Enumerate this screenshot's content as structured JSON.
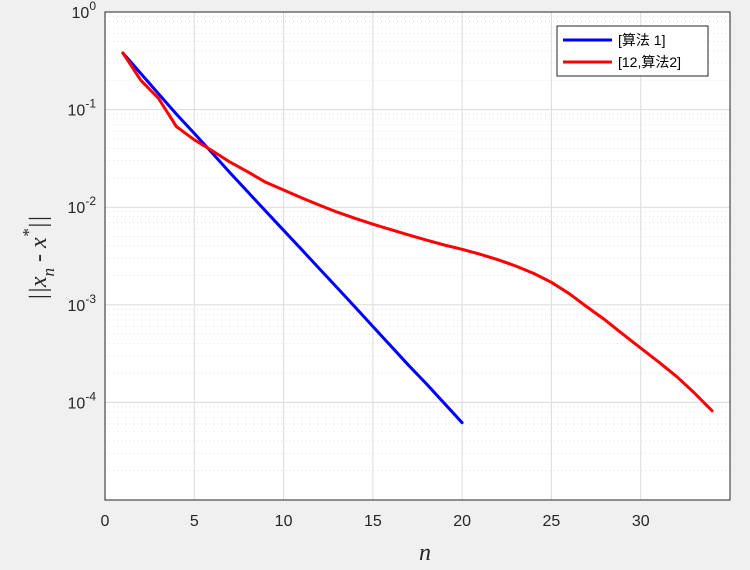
{
  "chart_data": {
    "type": "line",
    "xlabel": "n",
    "ylabel_parts": [
      "||x",
      "n",
      " - x",
      "*",
      "||"
    ],
    "xlim": [
      0,
      35
    ],
    "ylim": [
      1e-05,
      1
    ],
    "yscale": "log",
    "grid": true,
    "minor_grid": true,
    "legend_position": "top-right",
    "x_ticks": [
      0,
      5,
      10,
      15,
      20,
      25,
      30
    ],
    "y_ticks": [
      {
        "value": 1,
        "base": "10",
        "exp": "0"
      },
      {
        "value": 0.1,
        "base": "10",
        "exp": "-1"
      },
      {
        "value": 0.01,
        "base": "10",
        "exp": "-2"
      },
      {
        "value": 0.001,
        "base": "10",
        "exp": "-3"
      },
      {
        "value": 0.0001,
        "base": "10",
        "exp": "-4"
      }
    ],
    "series": [
      {
        "name": "[算法 1]",
        "color": "#0000ff",
        "points": [
          [
            1,
            0.38
          ],
          [
            2,
            0.235
          ],
          [
            3,
            0.145
          ],
          [
            4,
            0.09
          ],
          [
            5,
            0.057
          ],
          [
            6,
            0.036
          ],
          [
            7,
            0.0225
          ],
          [
            8,
            0.0143
          ],
          [
            9,
            0.0091
          ],
          [
            10,
            0.0058
          ],
          [
            11,
            0.0037
          ],
          [
            12,
            0.00235
          ],
          [
            13,
            0.0015
          ],
          [
            14,
            0.00095
          ],
          [
            15,
            0.0006
          ],
          [
            16,
            0.00038
          ],
          [
            17,
            0.00024
          ],
          [
            18,
            0.000155
          ],
          [
            19,
            9.8e-05
          ],
          [
            20,
            6.2e-05
          ]
        ]
      },
      {
        "name": "[12,算法2]",
        "color": "#ff0000",
        "points": [
          [
            1,
            0.38
          ],
          [
            2,
            0.2
          ],
          [
            3,
            0.13
          ],
          [
            4,
            0.067
          ],
          [
            5,
            0.049
          ],
          [
            6,
            0.038
          ],
          [
            7,
            0.029
          ],
          [
            8,
            0.023
          ],
          [
            9,
            0.018
          ],
          [
            10,
            0.015
          ],
          [
            11,
            0.0125
          ],
          [
            12,
            0.0105
          ],
          [
            13,
            0.0089
          ],
          [
            14,
            0.0077
          ],
          [
            15,
            0.0067
          ],
          [
            16,
            0.0059
          ],
          [
            17,
            0.0052
          ],
          [
            18,
            0.0046
          ],
          [
            19,
            0.0041
          ],
          [
            20,
            0.0037
          ],
          [
            21,
            0.0033
          ],
          [
            22,
            0.0029
          ],
          [
            23,
            0.0025
          ],
          [
            24,
            0.0021
          ],
          [
            25,
            0.0017
          ],
          [
            26,
            0.0013
          ],
          [
            27,
            0.00095
          ],
          [
            28,
            0.0007
          ],
          [
            29,
            0.0005
          ],
          [
            30,
            0.00036
          ],
          [
            31,
            0.00026
          ],
          [
            32,
            0.000185
          ],
          [
            33,
            0.000125
          ],
          [
            34,
            8.2e-05
          ]
        ]
      }
    ]
  }
}
